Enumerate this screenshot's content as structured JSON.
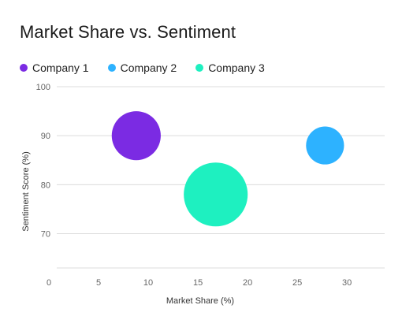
{
  "chart_data": {
    "type": "scatter",
    "title": "Market Share vs. Sentiment",
    "xlabel": "Market Share (%)",
    "ylabel": "Sentiment Score (%)",
    "xlim": [
      0,
      33
    ],
    "ylim": [
      63,
      100
    ],
    "x_ticks": [
      0,
      5,
      10,
      15,
      20,
      25,
      30
    ],
    "y_ticks": [
      70,
      80,
      90,
      100
    ],
    "grid": true,
    "legend_position": "top-left",
    "series": [
      {
        "name": "Company 1",
        "color": "#7b2be3",
        "points": [
          {
            "x": 8,
            "y": 90,
            "size": 10
          }
        ]
      },
      {
        "name": "Company 2",
        "color": "#2db2ff",
        "points": [
          {
            "x": 27,
            "y": 88,
            "size": 6
          }
        ]
      },
      {
        "name": "Company 3",
        "color": "#1ef0c0",
        "points": [
          {
            "x": 16,
            "y": 78,
            "size": 17
          }
        ]
      }
    ]
  }
}
